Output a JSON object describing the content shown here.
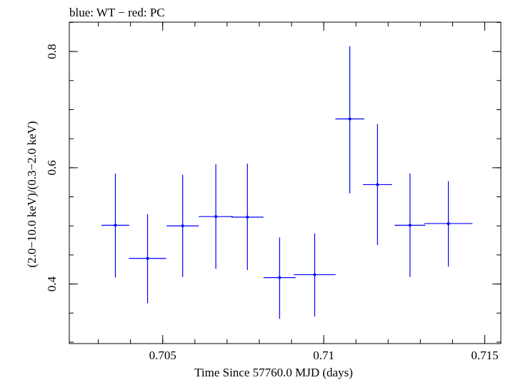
{
  "chart_data": {
    "type": "scatter",
    "title": "blue: WT − red: PC",
    "xlabel": "Time Since 57760.0 MJD (days)",
    "ylabel": "(2.0−10.0 keV)/(0.3−2.0 keV)",
    "xlim": [
      0.7021,
      0.7155
    ],
    "ylim": [
      0.2975,
      0.8505
    ],
    "xticks": [
      {
        "value": 0.705,
        "label": "0.705"
      },
      {
        "value": 0.71,
        "label": "0.71"
      },
      {
        "value": 0.715,
        "label": "0.715"
      }
    ],
    "yticks": [
      {
        "value": 0.4,
        "label": "0.4"
      },
      {
        "value": 0.6,
        "label": "0.6"
      },
      {
        "value": 0.8,
        "label": "0.8"
      }
    ],
    "x_minor_step": 0.001,
    "y_minor_step": 0.05,
    "series": [
      {
        "name": "WT",
        "color": "#0000ff",
        "points": [
          {
            "x": 0.70353,
            "xerr": 0.00043,
            "y": 0.501,
            "yerr_low": 0.09,
            "yerr_high": 0.089
          },
          {
            "x": 0.70453,
            "xerr": 0.00058,
            "y": 0.444,
            "yerr_low": 0.077,
            "yerr_high": 0.076
          },
          {
            "x": 0.70562,
            "xerr": 0.0005,
            "y": 0.5,
            "yerr_low": 0.088,
            "yerr_high": 0.088
          },
          {
            "x": 0.70665,
            "xerr": 0.00053,
            "y": 0.516,
            "yerr_low": 0.09,
            "yerr_high": 0.09
          },
          {
            "x": 0.70763,
            "xerr": 0.0005,
            "y": 0.515,
            "yerr_low": 0.091,
            "yerr_high": 0.092
          },
          {
            "x": 0.70863,
            "xerr": 0.0005,
            "y": 0.411,
            "yerr_low": 0.071,
            "yerr_high": 0.069
          },
          {
            "x": 0.70972,
            "xerr": 0.00065,
            "y": 0.416,
            "yerr_low": 0.072,
            "yerr_high": 0.071
          },
          {
            "x": 0.71081,
            "xerr": 0.00045,
            "y": 0.684,
            "yerr_low": 0.128,
            "yerr_high": 0.125
          },
          {
            "x": 0.71167,
            "xerr": 0.00045,
            "y": 0.571,
            "yerr_low": 0.104,
            "yerr_high": 0.104
          },
          {
            "x": 0.71268,
            "xerr": 0.00048,
            "y": 0.501,
            "yerr_low": 0.089,
            "yerr_high": 0.089
          },
          {
            "x": 0.71387,
            "xerr": 0.00075,
            "y": 0.504,
            "yerr_low": 0.074,
            "yerr_high": 0.073
          }
        ]
      }
    ]
  }
}
